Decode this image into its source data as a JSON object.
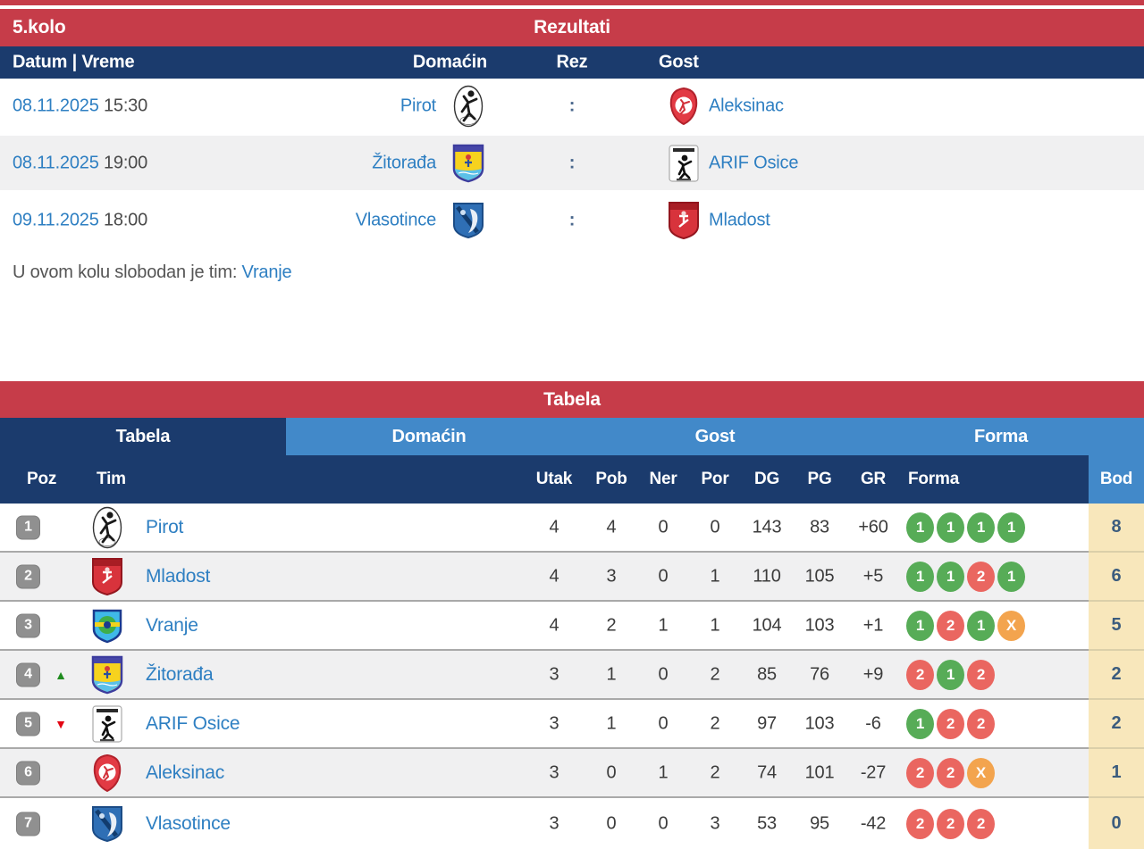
{
  "colors": {
    "accent_red": "#c63c49",
    "navy": "#1b3b6d",
    "light_blue": "#4289c9",
    "link_blue": "#2e7fc2",
    "row_alt_gray": "#f0f0f1",
    "bod_bg": "#f8e7bb",
    "bod_text": "#3b5c7e",
    "form_win_green": "#57ac57",
    "form_loss_red": "#ea6660",
    "form_draw_orange": "#f3a44e",
    "badge_gray": "#909090",
    "trend_up_green": "#1f8b1f",
    "trend_down_red": "#e30613"
  },
  "results": {
    "round": "5.kolo",
    "title": "Rezultati",
    "columns": {
      "datetime": "Datum | Vreme",
      "home": "Domaćin",
      "result": "Rez",
      "guest": "Gost"
    },
    "fixtures": [
      {
        "date": "08.11.2025",
        "time": "15:30",
        "home": "Pirot",
        "home_logo": "pirot",
        "score": ":",
        "guest": "Aleksinac",
        "guest_logo": "aleksinac"
      },
      {
        "date": "08.11.2025",
        "time": "19:00",
        "home": "Žitorađa",
        "home_logo": "zitorada",
        "score": ":",
        "guest": "ARIF Osice",
        "guest_logo": "arif"
      },
      {
        "date": "09.11.2025",
        "time": "18:00",
        "home": "Vlasotince",
        "home_logo": "vlasotince",
        "score": ":",
        "guest": "Mladost",
        "guest_logo": "mladost"
      }
    ],
    "bye_text": "U ovom kolu slobodan je tim:",
    "bye_team": "Vranje"
  },
  "table": {
    "title": "Tabela",
    "tabs": [
      {
        "label": "Tabela",
        "active": true
      },
      {
        "label": "Domaćin",
        "active": false
      },
      {
        "label": "Gost",
        "active": false
      },
      {
        "label": "Forma",
        "active": false
      }
    ],
    "columns": {
      "poz": "Poz",
      "tim": "Tim",
      "utak": "Utak",
      "pob": "Pob",
      "ner": "Ner",
      "por": "Por",
      "dg": "DG",
      "pg": "PG",
      "gr": "GR",
      "forma": "Forma",
      "bod": "Bod"
    },
    "rows": [
      {
        "pos": "1",
        "trend": "",
        "team": "Pirot",
        "logo": "pirot",
        "utak": "4",
        "pob": "4",
        "ner": "0",
        "por": "0",
        "dg": "143",
        "pg": "83",
        "gr": "+60",
        "forma": [
          {
            "label": "1",
            "result": "win"
          },
          {
            "label": "1",
            "result": "win"
          },
          {
            "label": "1",
            "result": "win"
          },
          {
            "label": "1",
            "result": "win"
          }
        ],
        "bod": "8"
      },
      {
        "pos": "2",
        "trend": "",
        "team": "Mladost",
        "logo": "mladost",
        "utak": "4",
        "pob": "3",
        "ner": "0",
        "por": "1",
        "dg": "110",
        "pg": "105",
        "gr": "+5",
        "forma": [
          {
            "label": "1",
            "result": "win"
          },
          {
            "label": "1",
            "result": "win"
          },
          {
            "label": "2",
            "result": "loss"
          },
          {
            "label": "1",
            "result": "win"
          }
        ],
        "bod": "6"
      },
      {
        "pos": "3",
        "trend": "",
        "team": "Vranje",
        "logo": "vranje",
        "utak": "4",
        "pob": "2",
        "ner": "1",
        "por": "1",
        "dg": "104",
        "pg": "103",
        "gr": "+1",
        "forma": [
          {
            "label": "1",
            "result": "win"
          },
          {
            "label": "2",
            "result": "loss"
          },
          {
            "label": "1",
            "result": "win"
          },
          {
            "label": "X",
            "result": "draw"
          }
        ],
        "bod": "5"
      },
      {
        "pos": "4",
        "trend": "up",
        "team": "Žitorađa",
        "logo": "zitorada",
        "utak": "3",
        "pob": "1",
        "ner": "0",
        "por": "2",
        "dg": "85",
        "pg": "76",
        "gr": "+9",
        "forma": [
          {
            "label": "2",
            "result": "loss"
          },
          {
            "label": "1",
            "result": "win"
          },
          {
            "label": "2",
            "result": "loss"
          }
        ],
        "bod": "2"
      },
      {
        "pos": "5",
        "trend": "down",
        "team": "ARIF Osice",
        "logo": "arif",
        "utak": "3",
        "pob": "1",
        "ner": "0",
        "por": "2",
        "dg": "97",
        "pg": "103",
        "gr": "-6",
        "forma": [
          {
            "label": "1",
            "result": "win"
          },
          {
            "label": "2",
            "result": "loss"
          },
          {
            "label": "2",
            "result": "loss"
          }
        ],
        "bod": "2"
      },
      {
        "pos": "6",
        "trend": "",
        "team": "Aleksinac",
        "logo": "aleksinac",
        "utak": "3",
        "pob": "0",
        "ner": "1",
        "por": "2",
        "dg": "74",
        "pg": "101",
        "gr": "-27",
        "forma": [
          {
            "label": "2",
            "result": "loss"
          },
          {
            "label": "2",
            "result": "loss"
          },
          {
            "label": "X",
            "result": "draw"
          }
        ],
        "bod": "1"
      },
      {
        "pos": "7",
        "trend": "",
        "team": "Vlasotince",
        "logo": "vlasotince",
        "utak": "3",
        "pob": "0",
        "ner": "0",
        "por": "3",
        "dg": "53",
        "pg": "95",
        "gr": "-42",
        "forma": [
          {
            "label": "2",
            "result": "loss"
          },
          {
            "label": "2",
            "result": "loss"
          },
          {
            "label": "2",
            "result": "loss"
          }
        ],
        "bod": "0"
      }
    ]
  }
}
